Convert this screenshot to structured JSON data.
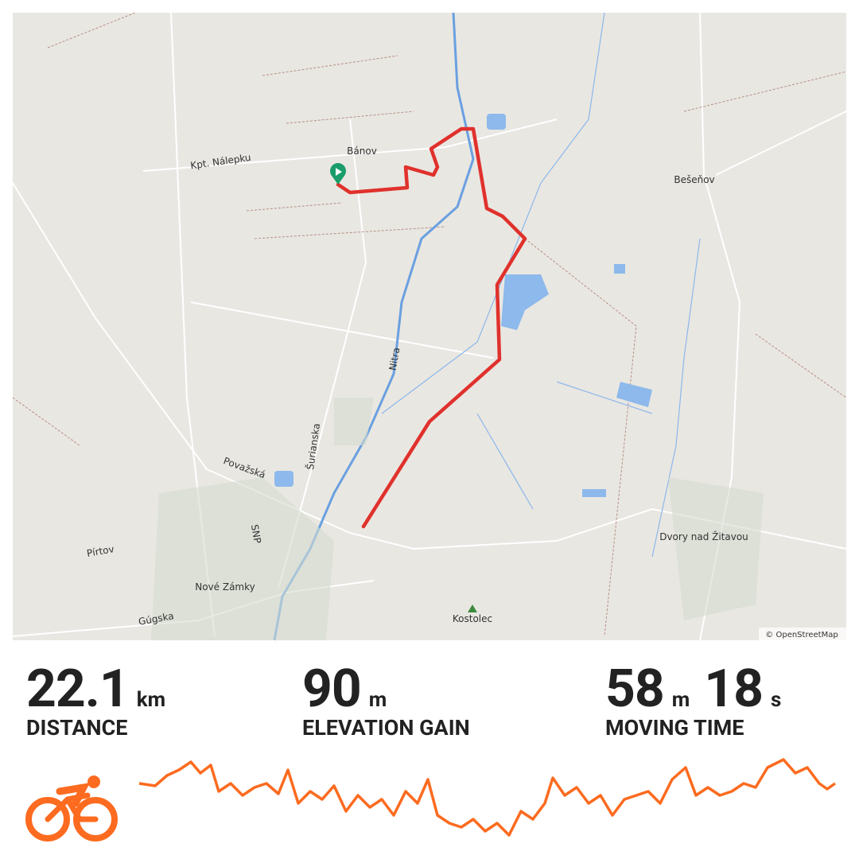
{
  "map": {
    "labels": [
      {
        "text": "Bánov"
      },
      {
        "text": "Kpt. Nálepku"
      },
      {
        "text": "Bešeňov"
      },
      {
        "text": "Nitra"
      },
      {
        "text": "Šurianska"
      },
      {
        "text": "Považská"
      },
      {
        "text": "SNP"
      },
      {
        "text": "Pírtov"
      },
      {
        "text": "Nové Zámky"
      },
      {
        "text": "Gúgska"
      },
      {
        "text": "Kostolec"
      },
      {
        "text": "Dvory nad Žitavou"
      }
    ],
    "attribution": "© OpenStreetMap"
  },
  "stats": [
    {
      "parts": [
        {
          "value": 22.1,
          "unit": "km"
        }
      ],
      "label": "DISTANCE"
    },
    {
      "parts": [
        {
          "value": 90,
          "unit": "m"
        }
      ],
      "label": "ELEVATION GAIN"
    },
    {
      "parts": [
        {
          "value": 58,
          "unit": "m"
        },
        {
          "value": 18,
          "unit": "s"
        }
      ],
      "label": "MOVING TIME"
    }
  ]
}
